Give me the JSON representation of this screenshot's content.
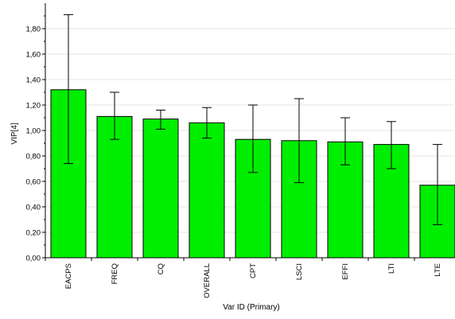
{
  "chart_data": {
    "type": "bar",
    "title": "",
    "xlabel": "Var ID (Primary)",
    "ylabel": "VIP[4]",
    "categories": [
      "EACPS",
      "FREQ",
      "CQ",
      "OVERALL",
      "CPT",
      "LSCI",
      "EFFI",
      "LTI",
      "LTE"
    ],
    "values": [
      1.32,
      1.11,
      1.09,
      1.06,
      0.93,
      0.92,
      0.91,
      0.89,
      0.57
    ],
    "error_low": [
      0.74,
      0.93,
      1.01,
      0.94,
      0.67,
      0.59,
      0.73,
      0.7,
      0.26
    ],
    "error_high": [
      1.91,
      1.3,
      1.16,
      1.18,
      1.2,
      1.25,
      1.1,
      1.07,
      0.89
    ],
    "ylim": [
      0,
      2.0
    ],
    "y_ticks": [
      0.0,
      0.2,
      0.4,
      0.6,
      0.8,
      1.0,
      1.2,
      1.4,
      1.6,
      1.8
    ],
    "y_tick_labels": [
      "0,00",
      "0,20",
      "0,40",
      "0,60",
      "0,80",
      "1,00",
      "1,20",
      "1,40",
      "1,60",
      "1,80"
    ],
    "grid": true,
    "bar_color": "#00ee00",
    "bar_stroke": "#000000",
    "grid_color": "#e4e4e4"
  }
}
